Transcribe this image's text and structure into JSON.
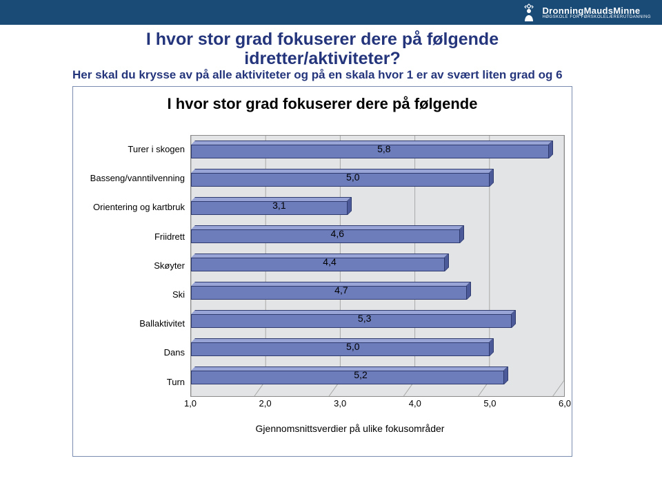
{
  "header": {
    "brand": "DronningMaudsMinne",
    "brand_sub": "HØGSKOLE FOR FØRSKOLELÆRERUTDANNING",
    "bg_color": "#1a4b77"
  },
  "title_line1": "I hvor stor grad fokuserer dere på følgende",
  "title_line2": "idretter/aktiviteter?",
  "subtitle": "Her skal du krysse av på alle aktiviteter og på en skala hvor 1 er av svært liten grad og 6",
  "chart": {
    "type": "bar",
    "inner_title": "I hvor stor grad  fokuserer dere på følgende",
    "x_title": "Gjennomsnittsverdier på ulike fokusområder",
    "xlim": [
      1.0,
      6.0
    ],
    "xticks": [
      "1,0",
      "2,0",
      "3,0",
      "4,0",
      "5,0",
      "6,0"
    ],
    "bar_fill": "#6d7dbc",
    "bar_top": "#97a4d5",
    "bar_side": "#4d5a99",
    "bar_border": "#2e3a6e",
    "plot_bg": "#e3e4e5",
    "categories": [
      {
        "label": "Turer i skogen",
        "value": 5.8,
        "value_label": "5,8"
      },
      {
        "label": "Basseng/vanntilvenning",
        "value": 5.0,
        "value_label": "5,0"
      },
      {
        "label": "Orientering og kartbruk",
        "value": 3.1,
        "value_label": "3,1"
      },
      {
        "label": "Friidrett",
        "value": 4.6,
        "value_label": "4,6"
      },
      {
        "label": "Skøyter",
        "value": 4.4,
        "value_label": "4,4"
      },
      {
        "label": "Ski",
        "value": 4.7,
        "value_label": "4,7"
      },
      {
        "label": "Ballaktivitet",
        "value": 5.3,
        "value_label": "5,3"
      },
      {
        "label": "Dans",
        "value": 5.0,
        "value_label": "5,0"
      },
      {
        "label": "Turn",
        "value": 5.2,
        "value_label": "5,2"
      }
    ]
  }
}
